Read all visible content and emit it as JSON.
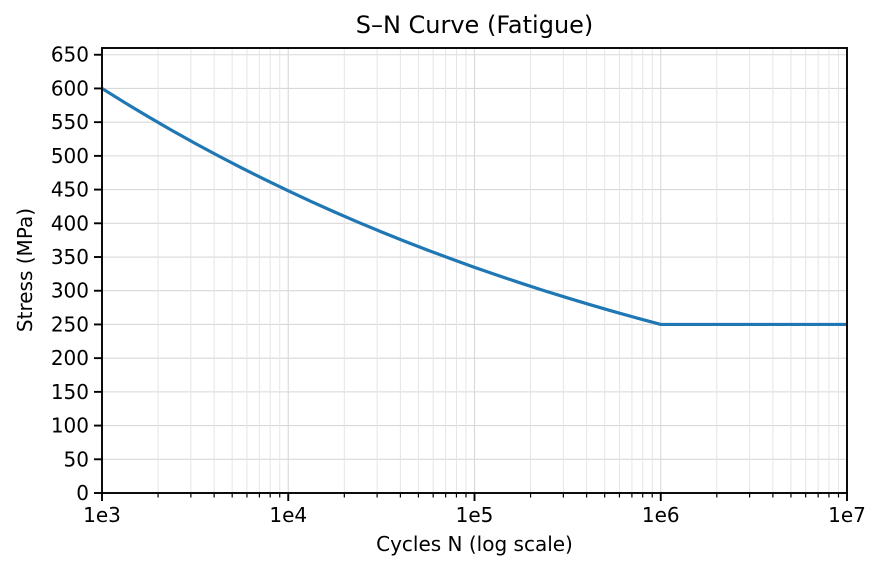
{
  "chart_data": {
    "type": "line",
    "title": "S–N Curve (Fatigue)",
    "xlabel": "Cycles N (log scale)",
    "ylabel": "Stress (MPa)",
    "x_scale": "log",
    "xlim": [
      1000,
      10000000
    ],
    "ylim": [
      0,
      660
    ],
    "x_ticks": [
      {
        "value": 1000,
        "label": "1e3"
      },
      {
        "value": 10000,
        "label": "1e4"
      },
      {
        "value": 100000,
        "label": "1e5"
      },
      {
        "value": 1000000,
        "label": "1e6"
      },
      {
        "value": 10000000,
        "label": "1e7"
      }
    ],
    "y_ticks": [
      0,
      50,
      100,
      150,
      200,
      250,
      300,
      350,
      400,
      450,
      500,
      550,
      600,
      650
    ],
    "grid": {
      "x_major": true,
      "x_minor": true,
      "y_major": true,
      "y_minor": false
    },
    "legend": "none",
    "colors": {
      "line": "#1f77b4",
      "grid_major": "#d8d8d8",
      "grid_minor": "#e5e5e5",
      "axis": "#000000",
      "background": "#ffffff"
    },
    "series": [
      {
        "name": "S-N curve",
        "points": [
          [
            1000,
            600.0
          ],
          [
            1334,
            578.5
          ],
          [
            1778,
            557.8
          ],
          [
            2371,
            537.8
          ],
          [
            3162,
            518.5
          ],
          [
            4217,
            500.0
          ],
          [
            5623,
            482.1
          ],
          [
            7499,
            464.8
          ],
          [
            10000,
            448.1
          ],
          [
            13335,
            432.0
          ],
          [
            17783,
            416.6
          ],
          [
            23714,
            401.7
          ],
          [
            31623,
            387.3
          ],
          [
            42170,
            373.4
          ],
          [
            56234,
            360.1
          ],
          [
            74989,
            347.2
          ],
          [
            100000,
            334.7
          ],
          [
            133352,
            322.7
          ],
          [
            177828,
            311.2
          ],
          [
            237137,
            300.0
          ],
          [
            316228,
            289.3
          ],
          [
            421697,
            278.9
          ],
          [
            562341,
            268.9
          ],
          [
            749894,
            259.3
          ],
          [
            1000000,
            250.0
          ],
          [
            10000000,
            250.0
          ]
        ]
      }
    ]
  }
}
